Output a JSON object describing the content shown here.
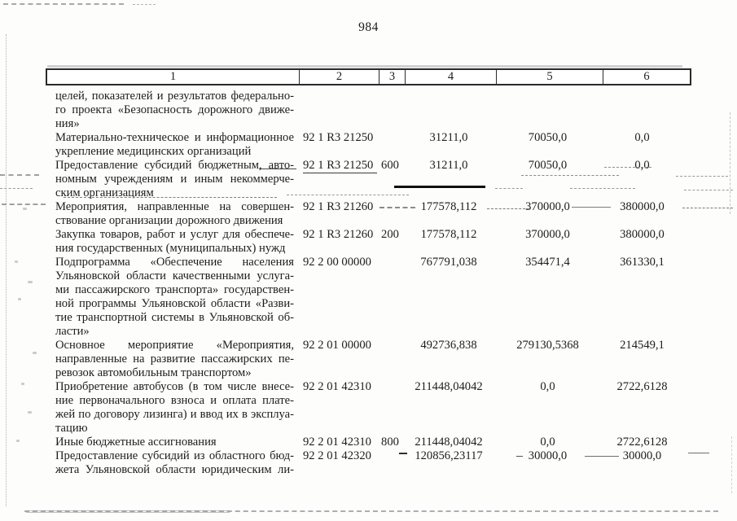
{
  "page": {
    "number": "984"
  },
  "colors": {
    "ink": "#1c1c1c",
    "border": "#2a2a2a"
  },
  "table": {
    "headers": [
      "1",
      "2",
      "3",
      "4",
      "5",
      "6"
    ],
    "rows": [
      {
        "desc_lines": [
          "целей, показателей и результатов федерально-",
          "го проекта «Безопасность дорожного движе-",
          "ния»"
        ],
        "code": "",
        "code_underlined": false,
        "expense_type": "",
        "amounts": [
          "",
          "",
          ""
        ]
      },
      {
        "desc_lines": [
          "Материально-техническое и информационное",
          "укрепление медицинских организаций"
        ],
        "code": "92 1 R3 21250",
        "code_underlined": false,
        "expense_type": "",
        "amounts": [
          "31211,0",
          "70050,0",
          "0,0"
        ]
      },
      {
        "desc_lines": [
          "Предоставление субсидий бюджетным, авто-",
          "номным учреждениям и иным некоммерче-",
          "ским организациям"
        ],
        "code": "92 1 R3 21250",
        "code_underlined": true,
        "expense_type": "600",
        "amounts": [
          "31211,0",
          "70050,0",
          "0,0"
        ]
      },
      {
        "desc_lines": [
          "Мероприятия, направленные на совершен-",
          "ствование организации дорожного движения"
        ],
        "code": "92 1 R3 21260",
        "code_underlined": false,
        "expense_type": "",
        "amounts": [
          "177578,112",
          "370000,0",
          "380000,0"
        ]
      },
      {
        "desc_lines": [
          "Закупка товаров, работ и услуг для обеспече-",
          "ния государственных (муниципальных) нужд"
        ],
        "code": "92 1 R3 21260",
        "code_underlined": false,
        "expense_type": "200",
        "amounts": [
          "177578,112",
          "370000,0",
          "380000,0"
        ]
      },
      {
        "desc_lines": [
          "Подпрограмма «Обеспечение населения",
          "Ульяновской области качественными услуга-",
          "ми пассажирского транспорта» государствен-",
          "ной программы Ульяновской области «Разви-",
          "тие транспортной системы в Ульяновской об-",
          "ласти»"
        ],
        "code": "92 2 00 00000",
        "code_underlined": false,
        "expense_type": "",
        "amounts": [
          "767791,038",
          "354471,4",
          "361330,1"
        ]
      },
      {
        "desc_lines": [
          "Основное мероприятие «Мероприятия,",
          "направленные на развитие пассажирских пе-",
          "ревозок автомобильным транспортом»"
        ],
        "code": "92 2 01 00000",
        "code_underlined": false,
        "expense_type": "",
        "amounts": [
          "492736,838",
          "279130,5368",
          "214549,1"
        ]
      },
      {
        "desc_lines": [
          "Приобретение автобусов (в том числе внесе-",
          "ние первоначального взноса и оплата плате-",
          "жей по договору лизинга) и ввод их в эксплуа-",
          "тацию"
        ],
        "code": "92 2 01 42310",
        "code_underlined": false,
        "expense_type": "",
        "amounts": [
          "211448,04042",
          "0,0",
          "2722,6128"
        ]
      },
      {
        "desc_lines": [
          "Иные бюджетные ассигнования"
        ],
        "code": "92 2 01 42310",
        "code_underlined": false,
        "expense_type": "800",
        "amounts": [
          "211448,04042",
          "0,0",
          "2722,6128"
        ]
      },
      {
        "desc_lines": [
          "Предоставление субсидий из областного бюд-",
          "жета Ульяновской области юридическим ли-"
        ],
        "code": "92 2 01 42320",
        "code_underlined": false,
        "expense_type": "",
        "amounts": [
          "120856,23117",
          "30000,0",
          "30000,0"
        ]
      }
    ]
  }
}
